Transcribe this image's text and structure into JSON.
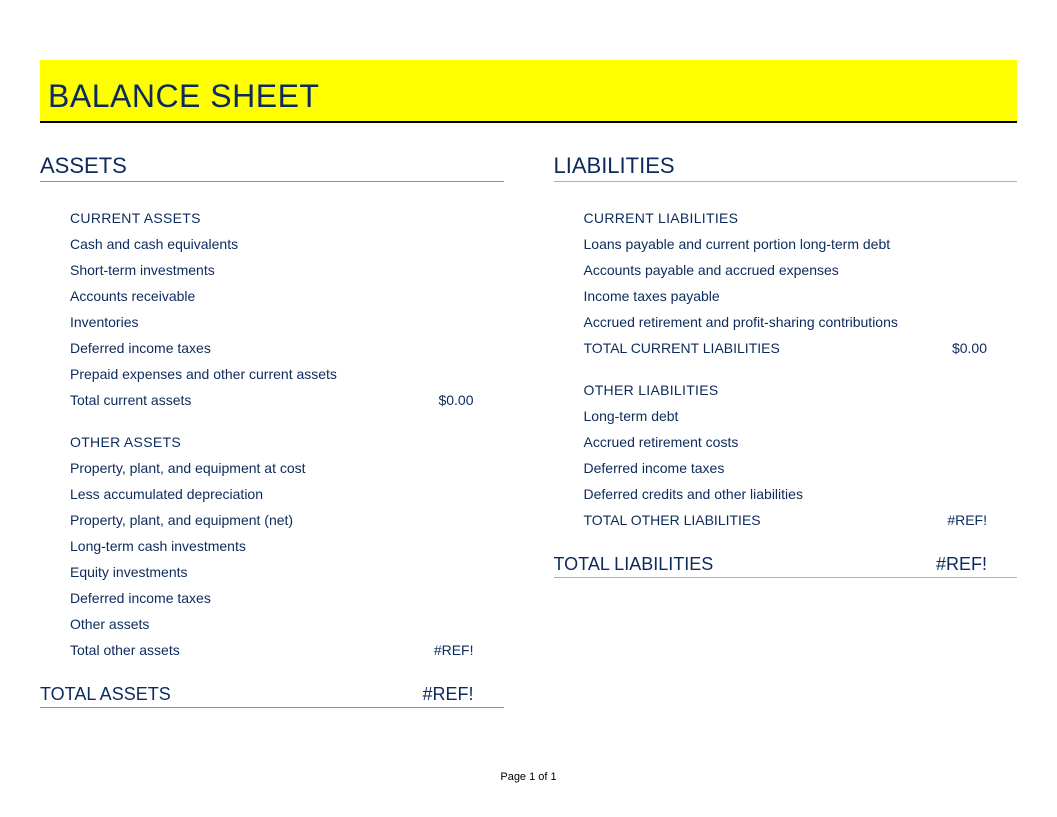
{
  "document": {
    "title": "BALANCE SHEET",
    "title_bg_color": "#ffff00",
    "title_border_color": "#000000",
    "title_text_color": "#0c2a5c",
    "text_color": "#0c2a5c",
    "orange_line_color": "#e67326",
    "gold_line_color": "#d4b43a",
    "page_footer": "Page 1 of 1"
  },
  "assets": {
    "heading": "ASSETS",
    "current": {
      "heading": "CURRENT ASSETS",
      "items": {
        "0": {
          "label": "Cash and cash equivalents",
          "value": ""
        },
        "1": {
          "label": "Short-term investments",
          "value": ""
        },
        "2": {
          "label": "Accounts receivable",
          "value": ""
        },
        "3": {
          "label": "Inventories",
          "value": ""
        },
        "4": {
          "label": "Deferred income taxes",
          "value": ""
        },
        "5": {
          "label": "Prepaid expenses and other current assets",
          "value": ""
        },
        "6": {
          "label": "Total current assets",
          "value": "$0.00"
        }
      }
    },
    "other": {
      "heading": "OTHER ASSETS",
      "items": {
        "0": {
          "label": "Property, plant, and equipment at cost",
          "value": ""
        },
        "1": {
          "label": "Less accumulated depreciation",
          "value": ""
        },
        "2": {
          "label": "Property, plant, and equipment (net)",
          "value": ""
        },
        "3": {
          "label": "Long-term cash investments",
          "value": ""
        },
        "4": {
          "label": "Equity investments",
          "value": ""
        },
        "5": {
          "label": "Deferred income taxes",
          "value": ""
        },
        "6": {
          "label": "Other assets",
          "value": ""
        },
        "7": {
          "label": "Total other assets",
          "value": "#REF!"
        }
      }
    },
    "total": {
      "label": "TOTAL ASSETS",
      "value": "#REF!"
    }
  },
  "liabilities": {
    "heading": "LIABILITIES",
    "current": {
      "heading": "CURRENT LIABILITIES",
      "items": {
        "0": {
          "label": "Loans payable and current portion long-term debt",
          "value": ""
        },
        "1": {
          "label": "Accounts payable and accrued expenses",
          "value": ""
        },
        "2": {
          "label": "Income taxes payable",
          "value": ""
        },
        "3": {
          "label": "Accrued retirement and profit-sharing contributions",
          "value": ""
        },
        "4": {
          "label": "TOTAL CURRENT LIABILITIES",
          "value": "$0.00"
        }
      }
    },
    "other": {
      "heading": "OTHER LIABILITIES",
      "items": {
        "0": {
          "label": "Long-term debt",
          "value": ""
        },
        "1": {
          "label": "Accrued retirement costs",
          "value": ""
        },
        "2": {
          "label": "Deferred income taxes",
          "value": ""
        },
        "3": {
          "label": "Deferred credits and other liabilities",
          "value": ""
        },
        "4": {
          "label": "TOTAL OTHER LIABILITIES",
          "value": "#REF!"
        }
      }
    },
    "total": {
      "label": "TOTAL LIABILITIES",
      "value": "#REF!"
    }
  }
}
